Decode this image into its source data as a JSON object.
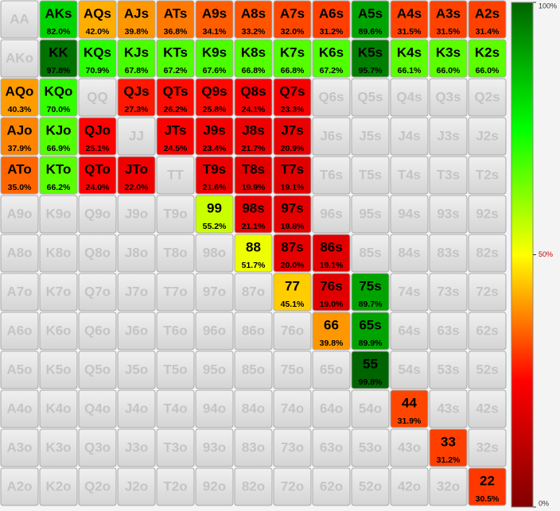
{
  "chart_data": {
    "type": "heatmap",
    "hands": [
      [
        "AA",
        "AKs",
        "AQs",
        "AJs",
        "ATs",
        "A9s",
        "A8s",
        "A7s",
        "A6s",
        "A5s",
        "A4s",
        "A3s",
        "A2s"
      ],
      [
        "AKo",
        "KK",
        "KQs",
        "KJs",
        "KTs",
        "K9s",
        "K8s",
        "K7s",
        "K6s",
        "K5s",
        "K4s",
        "K3s",
        "K2s"
      ],
      [
        "AQo",
        "KQo",
        "QQ",
        "QJs",
        "QTs",
        "Q9s",
        "Q8s",
        "Q7s",
        "Q6s",
        "Q5s",
        "Q4s",
        "Q3s",
        "Q2s"
      ],
      [
        "AJo",
        "KJo",
        "QJo",
        "JJ",
        "JTs",
        "J9s",
        "J8s",
        "J7s",
        "J6s",
        "J5s",
        "J4s",
        "J3s",
        "J2s"
      ],
      [
        "ATo",
        "KTo",
        "QTo",
        "JTo",
        "TT",
        "T9s",
        "T8s",
        "T7s",
        "T6s",
        "T5s",
        "T4s",
        "T3s",
        "T2s"
      ],
      [
        "A9o",
        "K9o",
        "Q9o",
        "J9o",
        "T9o",
        "99",
        "98s",
        "97s",
        "96s",
        "95s",
        "94s",
        "93s",
        "92s"
      ],
      [
        "A8o",
        "K8o",
        "Q8o",
        "J8o",
        "T8o",
        "98o",
        "88",
        "87s",
        "86s",
        "85s",
        "84s",
        "83s",
        "82s"
      ],
      [
        "A7o",
        "K7o",
        "Q7o",
        "J7o",
        "T7o",
        "97o",
        "87o",
        "77",
        "76s",
        "75s",
        "74s",
        "73s",
        "72s"
      ],
      [
        "A6o",
        "K6o",
        "Q6o",
        "J6o",
        "T6o",
        "96o",
        "86o",
        "76o",
        "66",
        "65s",
        "64s",
        "63s",
        "62s"
      ],
      [
        "A5o",
        "K5o",
        "Q5o",
        "J5o",
        "T5o",
        "95o",
        "85o",
        "75o",
        "65o",
        "55",
        "54s",
        "53s",
        "52s"
      ],
      [
        "A4o",
        "K4o",
        "Q4o",
        "J4o",
        "T4o",
        "94o",
        "84o",
        "74o",
        "64o",
        "54o",
        "44",
        "43s",
        "42s"
      ],
      [
        "A3o",
        "K3o",
        "Q3o",
        "J3o",
        "T3o",
        "93o",
        "83o",
        "73o",
        "63o",
        "53o",
        "43o",
        "33",
        "32s"
      ],
      [
        "A2o",
        "K2o",
        "Q2o",
        "J2o",
        "T2o",
        "92o",
        "82o",
        "72o",
        "62o",
        "52o",
        "42o",
        "32o",
        "22"
      ]
    ],
    "values": [
      [
        null,
        82.0,
        42.0,
        39.8,
        36.8,
        34.1,
        33.2,
        32.0,
        31.2,
        89.6,
        31.5,
        31.5,
        31.4
      ],
      [
        null,
        97.8,
        70.9,
        67.8,
        67.2,
        67.6,
        66.8,
        66.8,
        67.2,
        95.7,
        66.1,
        66.0,
        66.0
      ],
      [
        40.3,
        70.0,
        null,
        27.3,
        26.2,
        25.8,
        24.1,
        23.3,
        null,
        null,
        null,
        null,
        null
      ],
      [
        37.9,
        66.9,
        25.1,
        null,
        24.5,
        23.4,
        21.7,
        20.9,
        null,
        null,
        null,
        null,
        null
      ],
      [
        35.0,
        66.2,
        24.0,
        22.0,
        null,
        21.6,
        19.9,
        19.1,
        null,
        null,
        null,
        null,
        null
      ],
      [
        null,
        null,
        null,
        null,
        null,
        55.2,
        21.1,
        19.8,
        null,
        null,
        null,
        null,
        null
      ],
      [
        null,
        null,
        null,
        null,
        null,
        null,
        51.7,
        20.0,
        19.1,
        null,
        null,
        null,
        null
      ],
      [
        null,
        null,
        null,
        null,
        null,
        null,
        null,
        45.1,
        19.0,
        89.7,
        null,
        null,
        null
      ],
      [
        null,
        null,
        null,
        null,
        null,
        null,
        null,
        null,
        39.8,
        89.9,
        null,
        null,
        null
      ],
      [
        null,
        null,
        null,
        null,
        null,
        null,
        null,
        null,
        null,
        99.8,
        null,
        null,
        null
      ],
      [
        null,
        null,
        null,
        null,
        null,
        null,
        null,
        null,
        null,
        null,
        31.9,
        null,
        null
      ],
      [
        null,
        null,
        null,
        null,
        null,
        null,
        null,
        null,
        null,
        null,
        null,
        31.2,
        null
      ],
      [
        null,
        null,
        null,
        null,
        null,
        null,
        null,
        null,
        null,
        null,
        null,
        null,
        30.5
      ]
    ],
    "value_labels": [
      [
        null,
        "82.0%",
        "42.0%",
        "39.8%",
        "36.8%",
        "34.1%",
        "33.2%",
        "32.0%",
        "31.2%",
        "89.6%",
        "31.5%",
        "31.5%",
        "31.4%"
      ],
      [
        null,
        "97.8%",
        "70.9%",
        "67.8%",
        "67.2%",
        "67.6%",
        "66.8%",
        "66.8%",
        "67.2%",
        "95.7%",
        "66.1%",
        "66.0%",
        "66.0%"
      ],
      [
        "40.3%",
        "70.0%",
        null,
        "27.3%",
        "26.2%",
        "25.8%",
        "24.1%",
        "23.3%",
        null,
        null,
        null,
        null,
        null
      ],
      [
        "37.9%",
        "66.9%",
        "25.1%",
        null,
        "24.5%",
        "23.4%",
        "21.7%",
        "20.9%",
        null,
        null,
        null,
        null,
        null
      ],
      [
        "35.0%",
        "66.2%",
        "24.0%",
        "22.0%",
        null,
        "21.6%",
        "19.9%",
        "19.1%",
        null,
        null,
        null,
        null,
        null
      ],
      [
        null,
        null,
        null,
        null,
        null,
        "55.2%",
        "21.1%",
        "19.8%",
        null,
        null,
        null,
        null,
        null
      ],
      [
        null,
        null,
        null,
        null,
        null,
        null,
        "51.7%",
        "20.0%",
        "19.1%",
        null,
        null,
        null,
        null
      ],
      [
        null,
        null,
        null,
        null,
        null,
        null,
        null,
        "45.1%",
        "19.0%",
        "89.7%",
        null,
        null,
        null
      ],
      [
        null,
        null,
        null,
        null,
        null,
        null,
        null,
        null,
        "39.8%",
        "89.9%",
        null,
        null,
        null
      ],
      [
        null,
        null,
        null,
        null,
        null,
        null,
        null,
        null,
        null,
        "99.8%",
        null,
        null,
        null
      ],
      [
        null,
        null,
        null,
        null,
        null,
        null,
        null,
        null,
        null,
        null,
        "31.9%",
        null,
        null
      ],
      [
        null,
        null,
        null,
        null,
        null,
        null,
        null,
        null,
        null,
        null,
        null,
        "31.2%",
        null
      ],
      [
        null,
        null,
        null,
        null,
        null,
        null,
        null,
        null,
        null,
        null,
        null,
        null,
        "30.5%"
      ]
    ],
    "colorscale": [
      [
        0,
        "#800000"
      ],
      [
        25,
        "#ff0000"
      ],
      [
        50,
        "#ffff00"
      ],
      [
        75,
        "#00ff00"
      ],
      [
        100,
        "#006400"
      ]
    ],
    "zlim": [
      0,
      100
    ],
    "colorbar_ticks": [
      {
        "value": 100,
        "label": "100%"
      },
      {
        "value": 50,
        "label": "50%"
      },
      {
        "value": 0,
        "label": "0%"
      }
    ],
    "colorbar_tick_colors": [
      "#333333",
      "#cc0000",
      "#333333"
    ]
  }
}
